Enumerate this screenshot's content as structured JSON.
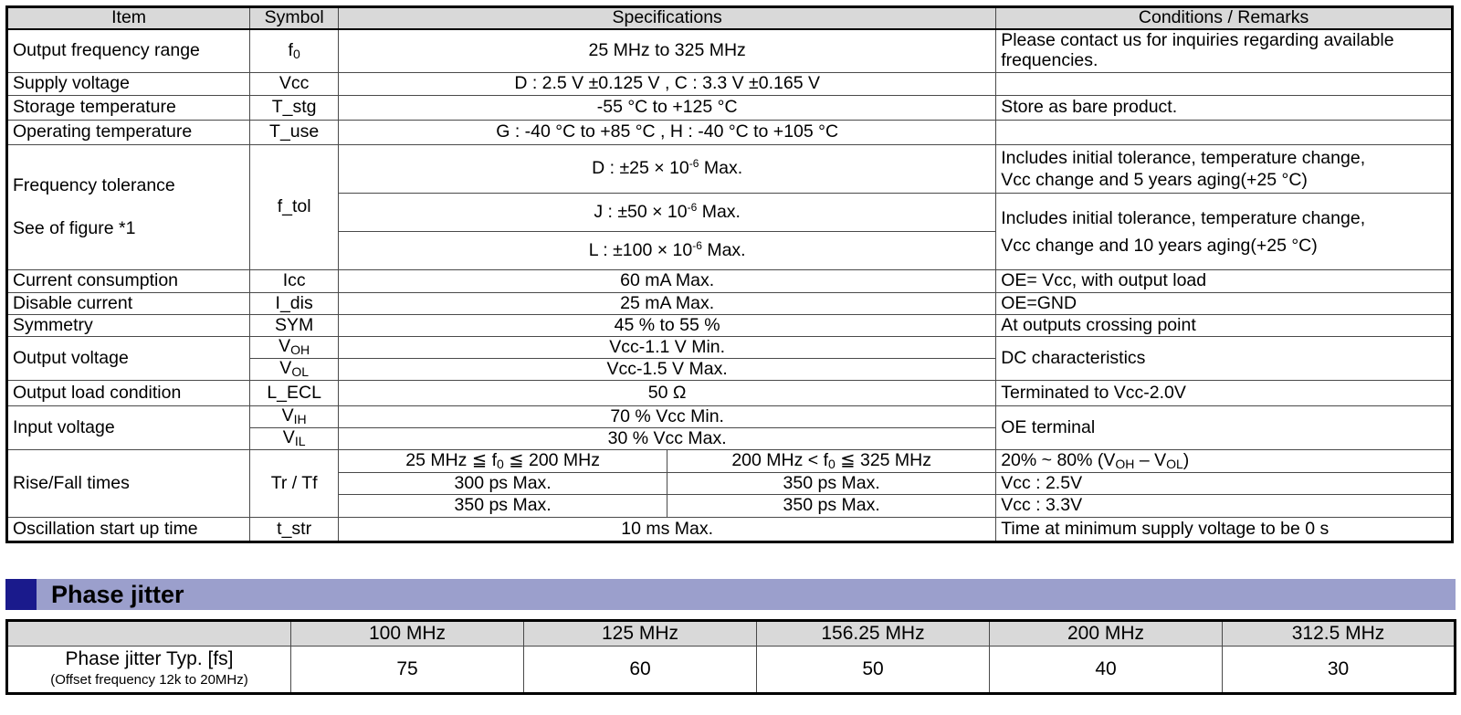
{
  "spec_table": {
    "headers": {
      "item": "Item",
      "symbol": "Symbol",
      "specifications": "Specifications",
      "remarks": "Conditions / Remarks"
    },
    "output_frequency_range": {
      "item": "Output frequency range",
      "symbol": "f",
      "symbol_sub": "0",
      "spec": "25 MHz to 325 MHz",
      "remark": "Please contact us for inquiries regarding available frequencies."
    },
    "supply_voltage": {
      "item": "Supply voltage",
      "symbol": "Vcc",
      "spec": "D : 2.5 V ±0.125 V , C : 3.3 V ±0.165 V",
      "remark": ""
    },
    "storage_temperature": {
      "item": "Storage temperature",
      "symbol": "T_stg",
      "spec": "-55 °C to +125 °C",
      "remark": "Store as bare product."
    },
    "operating_temperature": {
      "item": "Operating temperature",
      "symbol": "T_use",
      "spec": "G : -40 °C to +85 °C , H : -40 °C to +105 °C",
      "remark": ""
    },
    "frequency_tolerance": {
      "item_line1": "Frequency tolerance",
      "item_line2": "See of figure *1",
      "symbol": "f_tol",
      "spec_d": "D : ±25 × 10",
      "spec_d_tail": " Max.",
      "spec_j": "J : ±50 × 10",
      "spec_j_tail": " Max.",
      "spec_l": "L : ±100 × 10",
      "spec_l_tail": " Max.",
      "exponent": "-6",
      "remark_d_line1": "Includes initial tolerance, temperature change,",
      "remark_d_line2": "Vcc change and 5 years aging(+25 °C)",
      "remark_jl_line1": "Includes initial tolerance, temperature change,",
      "remark_jl_line2": "Vcc change and 10 years aging(+25 °C)"
    },
    "current_consumption": {
      "item": "Current consumption",
      "symbol": "Icc",
      "spec": "60 mA Max.",
      "remark": "OE= Vcc, with output load"
    },
    "disable_current": {
      "item": "Disable current",
      "symbol": "I_dis",
      "spec": "25 mA Max.",
      "remark": "OE=GND"
    },
    "symmetry": {
      "item": "Symmetry",
      "symbol": "SYM",
      "spec": "45 % to 55 %",
      "remark": "At outputs crossing point"
    },
    "output_voltage": {
      "item": "Output voltage",
      "voh_symbol": "V",
      "voh_sub": "OH",
      "voh_spec": "Vcc-1.1 V Min.",
      "vol_symbol": "V",
      "vol_sub": "OL",
      "vol_spec": "Vcc-1.5 V Max.",
      "remark": "DC characteristics"
    },
    "output_load_condition": {
      "item": "Output load condition",
      "symbol": "L_ECL",
      "spec": "50 Ω",
      "remark": "Terminated to Vcc-2.0V"
    },
    "input_voltage": {
      "item": "Input voltage",
      "vih_symbol": "V",
      "vih_sub": "IH",
      "vih_spec": "70 % Vcc Min.",
      "vil_symbol": "V",
      "vil_sub": "IL",
      "vil_spec": "30 % Vcc Max.",
      "remark": "OE terminal"
    },
    "rise_fall_times": {
      "item": "Rise/Fall times",
      "symbol": "Tr / Tf",
      "range1_a": "25 MHz ≦ f",
      "range1_sub": "0",
      "range1_b": " ≦ 200 MHz",
      "range2_a": "200 MHz < f",
      "range2_sub": "0",
      "range2_b": " ≦ 325 MHz",
      "remark1_a": "20% ~ 80% (V",
      "remark1_sub1": "OH",
      "remark1_mid": " – V",
      "remark1_sub2": "OL",
      "remark1_b": ")",
      "row2_low": "300 ps Max.",
      "row2_high": "350 ps Max.",
      "row2_remark": "Vcc : 2.5V",
      "row3_low": "350 ps Max.",
      "row3_high": "350 ps Max.",
      "row3_remark": "Vcc : 3.3V"
    },
    "oscillation_start_up_time": {
      "item": "Oscillation start up time",
      "symbol": "t_str",
      "spec": "10 ms Max.",
      "remark": "Time at minimum supply voltage to be 0 s"
    }
  },
  "phase_jitter": {
    "title": "Phase jitter",
    "columns": [
      "100 MHz",
      "125 MHz",
      "156.25 MHz",
      "200 MHz",
      "312.5 MHz"
    ],
    "label_line1": "Phase jitter Typ. [fs]",
    "label_line2": "(Offset frequency 12k to 20MHz)",
    "values": [
      "75",
      "60",
      "50",
      "40",
      "30"
    ]
  },
  "colors": {
    "header_bg": "#d9d9d9",
    "banner_bg": "#9b9fcc",
    "banner_square": "#1a1a8c"
  }
}
